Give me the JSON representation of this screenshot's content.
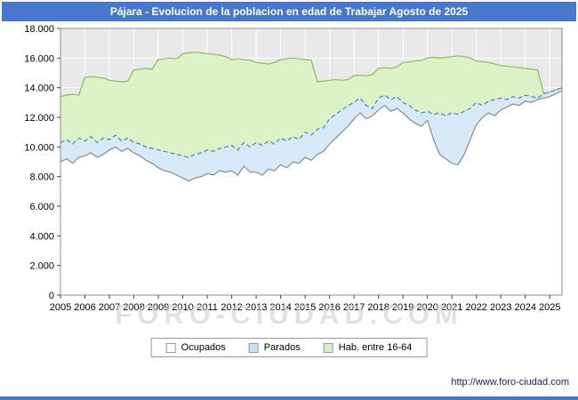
{
  "title": "Pájara - Evolucion de la poblacion en edad de Trabajar Agosto de 2025",
  "watermark": "FORO-CIUDAD.COM",
  "footer_url": "http://www.foro-ciudad.com",
  "colors": {
    "title_bg": "#4878cd",
    "accent_bar": "#4878cd",
    "plot_bg": "#e9e9e9",
    "grid": "#ffffff",
    "plot_border": "#8c8c8c",
    "axis_text": "#000000",
    "url_text": "#1a1a66",
    "watermark_text": "#cccccc"
  },
  "legend": {
    "items": [
      {
        "label": "Ocupados",
        "fill": "#ffffff",
        "border": "#7f9db9"
      },
      {
        "label": "Parados",
        "fill": "#cfe2f3",
        "border": "#7f9db9"
      },
      {
        "label": "Hab. entre 16-64",
        "fill": "#d9efc2",
        "border": "#7f9db9"
      }
    ]
  },
  "chart_data": {
    "type": "area",
    "title": "Pájara - Evolucion de la poblacion en edad de Trabajar Agosto de 2025",
    "xlabel": "",
    "ylabel": "",
    "ylim": [
      0,
      18000
    ],
    "ytick_step": 2000,
    "grid": true,
    "legend_position": "bottom",
    "stacking_note": "values are the visible top boundary of each area: 'ocupados' = Ocupados, 'parados' = Ocupados + Parados, 'hab-16-64' = total population aged 16-64",
    "y_tick_labels": [
      "0",
      "2.000",
      "4.000",
      "6.000",
      "8.000",
      "10.000",
      "12.000",
      "14.000",
      "16.000",
      "18.000"
    ],
    "x_tick_labels": [
      "2005",
      "2006",
      "2007",
      "2008",
      "2009",
      "2010",
      "2011",
      "2012",
      "2013",
      "2014",
      "2015",
      "2016",
      "2017",
      "2018",
      "2019",
      "2020",
      "2021",
      "2022",
      "2023",
      "2024",
      "2025"
    ],
    "x": [
      2005,
      2005.25,
      2005.5,
      2005.75,
      2006,
      2006.25,
      2006.5,
      2006.75,
      2007,
      2007.25,
      2007.5,
      2007.75,
      2008,
      2008.25,
      2008.5,
      2008.75,
      2009,
      2009.25,
      2009.5,
      2009.75,
      2010,
      2010.25,
      2010.5,
      2010.75,
      2011,
      2011.25,
      2011.5,
      2011.75,
      2012,
      2012.25,
      2012.5,
      2012.75,
      2013,
      2013.25,
      2013.5,
      2013.75,
      2014,
      2014.25,
      2014.5,
      2014.75,
      2015,
      2015.25,
      2015.5,
      2015.75,
      2016,
      2016.25,
      2016.5,
      2016.75,
      2017,
      2017.25,
      2017.5,
      2017.75,
      2018,
      2018.25,
      2018.5,
      2018.75,
      2019,
      2019.25,
      2019.5,
      2019.75,
      2020,
      2020.25,
      2020.5,
      2020.75,
      2021,
      2021.25,
      2021.5,
      2021.75,
      2022,
      2022.25,
      2022.5,
      2022.75,
      2023,
      2023.25,
      2023.5,
      2023.75,
      2024,
      2024.25,
      2024.5,
      2024.75,
      2025,
      2025.25,
      2025.5
    ],
    "series": [
      {
        "id": "hab-16-64",
        "name": "Hab. entre 16-64",
        "fill": "#def2c8",
        "line": "#86bf55",
        "dash": "",
        "values": [
          13400,
          13500,
          13550,
          13500,
          14700,
          14750,
          14700,
          14650,
          14500,
          14450,
          14400,
          14450,
          15200,
          15250,
          15300,
          15250,
          15900,
          15950,
          16000,
          15950,
          16300,
          16350,
          16400,
          16350,
          16300,
          16250,
          16200,
          16100,
          15900,
          15950,
          15900,
          15850,
          15700,
          15650,
          15600,
          15700,
          15900,
          15950,
          16000,
          15950,
          15900,
          15850,
          14400,
          14450,
          14500,
          14550,
          14500,
          14550,
          14800,
          14850,
          14800,
          14900,
          15300,
          15350,
          15300,
          15400,
          15700,
          15750,
          15800,
          15850,
          16000,
          16050,
          16000,
          16050,
          16100,
          16150,
          16100,
          16000,
          15800,
          15750,
          15700,
          15600,
          15500,
          15450,
          15400,
          15350,
          15300,
          15250,
          15200,
          13600,
          13700,
          13850,
          14000
        ]
      },
      {
        "id": "parados",
        "name": "Parados",
        "fill": "#d8e9f8",
        "line": "#4f81bd",
        "dash": "5 3",
        "values": [
          10300,
          10500,
          10200,
          10600,
          10400,
          10700,
          10300,
          10600,
          10500,
          10800,
          10400,
          10600,
          10300,
          10200,
          10000,
          9900,
          9800,
          9700,
          9600,
          9500,
          9400,
          9300,
          9500,
          9600,
          9800,
          9700,
          9900,
          10000,
          10100,
          9800,
          10300,
          10000,
          10300,
          10100,
          10400,
          10200,
          10600,
          10400,
          10700,
          10500,
          11000,
          10800,
          11200,
          11300,
          11900,
          12200,
          12500,
          12800,
          13000,
          13300,
          12800,
          12600,
          13300,
          13500,
          13200,
          13400,
          13000,
          12800,
          12500,
          12300,
          12400,
          12200,
          12300,
          12100,
          12300,
          12200,
          12400,
          12600,
          13000,
          12800,
          13100,
          13200,
          13300,
          13200,
          13400,
          13300,
          13500,
          13400,
          13300,
          13600,
          13700,
          13850,
          14000
        ]
      },
      {
        "id": "ocupados",
        "name": "Ocupados",
        "fill": "#ffffff",
        "line": "#8a8a8a",
        "dash": "",
        "values": [
          9000,
          9200,
          8900,
          9300,
          9400,
          9600,
          9300,
          9500,
          9800,
          10000,
          9700,
          9900,
          9600,
          9400,
          9100,
          8900,
          8600,
          8400,
          8300,
          8100,
          7900,
          7700,
          7900,
          8000,
          8200,
          8100,
          8400,
          8300,
          8400,
          8100,
          8700,
          8300,
          8300,
          8100,
          8500,
          8400,
          8800,
          8600,
          9000,
          8900,
          9300,
          9100,
          9500,
          9700,
          10200,
          10600,
          11000,
          11400,
          11900,
          12300,
          11900,
          12100,
          12500,
          12800,
          12400,
          12600,
          12300,
          11900,
          11600,
          11400,
          11800,
          10500,
          9500,
          9200,
          8900,
          8800,
          9500,
          10500,
          11500,
          12000,
          12300,
          12100,
          12500,
          12700,
          12900,
          12800,
          13100,
          13000,
          13200,
          13300,
          13400,
          13600,
          13800
        ]
      }
    ]
  }
}
